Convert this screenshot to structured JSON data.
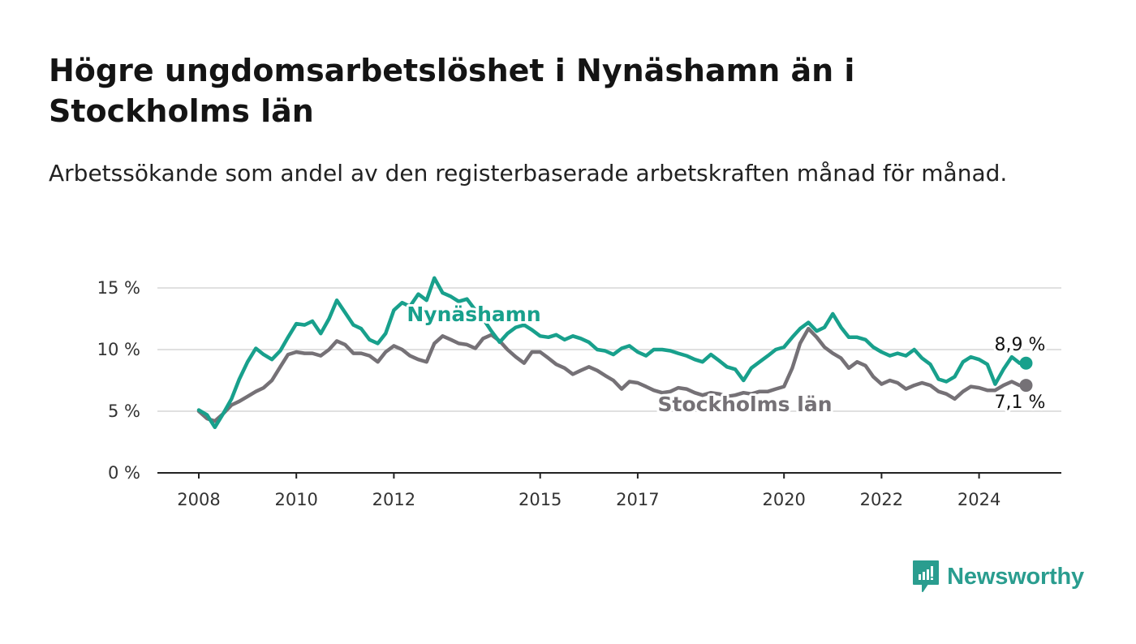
{
  "title": "Högre ungdomsarbetslöshet i Nynäshamn än i Stockholms län",
  "subtitle": "Arbetssökande som andel av den registerbaserade arbetskraften månad för månad.",
  "brand": {
    "name": "Newsworthy",
    "color": "#2a9d8f",
    "icon": "chart-bubble-icon"
  },
  "chart_data": {
    "type": "line",
    "ylim": [
      0,
      15
    ],
    "xlim": [
      2008,
      2025
    ],
    "y_ticks": [
      {
        "value": 0,
        "label": "0 %"
      },
      {
        "value": 5,
        "label": "5 %"
      },
      {
        "value": 10,
        "label": "10 %"
      },
      {
        "value": 15,
        "label": "15 %"
      }
    ],
    "x_ticks": [
      {
        "value": 2008,
        "label": "2008"
      },
      {
        "value": 2010,
        "label": "2010"
      },
      {
        "value": 2012,
        "label": "2012"
      },
      {
        "value": 2015,
        "label": "2015"
      },
      {
        "value": 2017,
        "label": "2017"
      },
      {
        "value": 2020,
        "label": "2020"
      },
      {
        "value": 2022,
        "label": "2022"
      },
      {
        "value": 2024,
        "label": "2024"
      }
    ],
    "grid": true,
    "series": [
      {
        "name": "Nynäshamn",
        "color": "#18a08c",
        "end_label": "8,9 %",
        "points": [
          [
            2008.0,
            5.1
          ],
          [
            2008.17,
            4.7
          ],
          [
            2008.33,
            3.7
          ],
          [
            2008.5,
            4.8
          ],
          [
            2008.67,
            6.0
          ],
          [
            2008.83,
            7.6
          ],
          [
            2009.0,
            9.0
          ],
          [
            2009.17,
            10.1
          ],
          [
            2009.33,
            9.6
          ],
          [
            2009.5,
            9.2
          ],
          [
            2009.67,
            9.9
          ],
          [
            2009.83,
            11.0
          ],
          [
            2010.0,
            12.1
          ],
          [
            2010.17,
            12.0
          ],
          [
            2010.33,
            12.3
          ],
          [
            2010.5,
            11.3
          ],
          [
            2010.67,
            12.5
          ],
          [
            2010.83,
            14.0
          ],
          [
            2011.0,
            13.0
          ],
          [
            2011.17,
            12.0
          ],
          [
            2011.33,
            11.7
          ],
          [
            2011.5,
            10.8
          ],
          [
            2011.67,
            10.5
          ],
          [
            2011.83,
            11.3
          ],
          [
            2012.0,
            13.2
          ],
          [
            2012.17,
            13.8
          ],
          [
            2012.33,
            13.5
          ],
          [
            2012.5,
            14.5
          ],
          [
            2012.67,
            14.0
          ],
          [
            2012.83,
            15.8
          ],
          [
            2013.0,
            14.6
          ],
          [
            2013.17,
            14.3
          ],
          [
            2013.33,
            13.9
          ],
          [
            2013.5,
            14.1
          ],
          [
            2013.67,
            13.2
          ],
          [
            2013.83,
            12.5
          ],
          [
            2014.0,
            11.5
          ],
          [
            2014.17,
            10.6
          ],
          [
            2014.33,
            11.3
          ],
          [
            2014.5,
            11.8
          ],
          [
            2014.67,
            12.0
          ],
          [
            2014.83,
            11.6
          ],
          [
            2015.0,
            11.1
          ],
          [
            2015.17,
            11.0
          ],
          [
            2015.33,
            11.2
          ],
          [
            2015.5,
            10.8
          ],
          [
            2015.67,
            11.1
          ],
          [
            2015.83,
            10.9
          ],
          [
            2016.0,
            10.6
          ],
          [
            2016.17,
            10.0
          ],
          [
            2016.33,
            9.9
          ],
          [
            2016.5,
            9.6
          ],
          [
            2016.67,
            10.1
          ],
          [
            2016.83,
            10.3
          ],
          [
            2017.0,
            9.8
          ],
          [
            2017.17,
            9.5
          ],
          [
            2017.33,
            10.0
          ],
          [
            2017.5,
            10.0
          ],
          [
            2017.67,
            9.9
          ],
          [
            2017.83,
            9.7
          ],
          [
            2018.0,
            9.5
          ],
          [
            2018.17,
            9.2
          ],
          [
            2018.33,
            9.0
          ],
          [
            2018.5,
            9.6
          ],
          [
            2018.67,
            9.1
          ],
          [
            2018.83,
            8.6
          ],
          [
            2019.0,
            8.4
          ],
          [
            2019.17,
            7.5
          ],
          [
            2019.33,
            8.5
          ],
          [
            2019.5,
            9.0
          ],
          [
            2019.67,
            9.5
          ],
          [
            2019.83,
            10.0
          ],
          [
            2020.0,
            10.2
          ],
          [
            2020.17,
            11.0
          ],
          [
            2020.33,
            11.7
          ],
          [
            2020.5,
            12.2
          ],
          [
            2020.67,
            11.5
          ],
          [
            2020.83,
            11.8
          ],
          [
            2021.0,
            12.9
          ],
          [
            2021.17,
            11.8
          ],
          [
            2021.33,
            11.0
          ],
          [
            2021.5,
            11.0
          ],
          [
            2021.67,
            10.8
          ],
          [
            2021.83,
            10.2
          ],
          [
            2022.0,
            9.8
          ],
          [
            2022.17,
            9.5
          ],
          [
            2022.33,
            9.7
          ],
          [
            2022.5,
            9.5
          ],
          [
            2022.67,
            10.0
          ],
          [
            2022.83,
            9.3
          ],
          [
            2023.0,
            8.8
          ],
          [
            2023.17,
            7.6
          ],
          [
            2023.33,
            7.4
          ],
          [
            2023.5,
            7.8
          ],
          [
            2023.67,
            9.0
          ],
          [
            2023.83,
            9.4
          ],
          [
            2024.0,
            9.2
          ],
          [
            2024.17,
            8.8
          ],
          [
            2024.33,
            7.2
          ],
          [
            2024.5,
            8.4
          ],
          [
            2024.67,
            9.4
          ],
          [
            2024.83,
            8.9
          ]
        ]
      },
      {
        "name": "Stockholms län",
        "color": "#757176",
        "end_label": "7,1 %",
        "points": [
          [
            2008.0,
            5.0
          ],
          [
            2008.17,
            4.4
          ],
          [
            2008.33,
            4.2
          ],
          [
            2008.5,
            4.8
          ],
          [
            2008.67,
            5.5
          ],
          [
            2008.83,
            5.8
          ],
          [
            2009.0,
            6.2
          ],
          [
            2009.17,
            6.6
          ],
          [
            2009.33,
            6.9
          ],
          [
            2009.5,
            7.5
          ],
          [
            2009.67,
            8.6
          ],
          [
            2009.83,
            9.6
          ],
          [
            2010.0,
            9.8
          ],
          [
            2010.17,
            9.7
          ],
          [
            2010.33,
            9.7
          ],
          [
            2010.5,
            9.5
          ],
          [
            2010.67,
            10.0
          ],
          [
            2010.83,
            10.7
          ],
          [
            2011.0,
            10.4
          ],
          [
            2011.17,
            9.7
          ],
          [
            2011.33,
            9.7
          ],
          [
            2011.5,
            9.5
          ],
          [
            2011.67,
            9.0
          ],
          [
            2011.83,
            9.8
          ],
          [
            2012.0,
            10.3
          ],
          [
            2012.17,
            10.0
          ],
          [
            2012.33,
            9.5
          ],
          [
            2012.5,
            9.2
          ],
          [
            2012.67,
            9.0
          ],
          [
            2012.83,
            10.5
          ],
          [
            2013.0,
            11.1
          ],
          [
            2013.17,
            10.8
          ],
          [
            2013.33,
            10.5
          ],
          [
            2013.5,
            10.4
          ],
          [
            2013.67,
            10.1
          ],
          [
            2013.83,
            10.9
          ],
          [
            2014.0,
            11.2
          ],
          [
            2014.17,
            10.7
          ],
          [
            2014.33,
            10.0
          ],
          [
            2014.5,
            9.4
          ],
          [
            2014.67,
            8.9
          ],
          [
            2014.83,
            9.8
          ],
          [
            2015.0,
            9.8
          ],
          [
            2015.17,
            9.3
          ],
          [
            2015.33,
            8.8
          ],
          [
            2015.5,
            8.5
          ],
          [
            2015.67,
            8.0
          ],
          [
            2015.83,
            8.3
          ],
          [
            2016.0,
            8.6
          ],
          [
            2016.17,
            8.3
          ],
          [
            2016.33,
            7.9
          ],
          [
            2016.5,
            7.5
          ],
          [
            2016.67,
            6.8
          ],
          [
            2016.83,
            7.4
          ],
          [
            2017.0,
            7.3
          ],
          [
            2017.17,
            7.0
          ],
          [
            2017.33,
            6.7
          ],
          [
            2017.5,
            6.5
          ],
          [
            2017.67,
            6.6
          ],
          [
            2017.83,
            6.9
          ],
          [
            2018.0,
            6.8
          ],
          [
            2018.17,
            6.5
          ],
          [
            2018.33,
            6.3
          ],
          [
            2018.5,
            6.5
          ],
          [
            2018.67,
            6.4
          ],
          [
            2018.83,
            6.2
          ],
          [
            2019.0,
            6.3
          ],
          [
            2019.17,
            6.5
          ],
          [
            2019.33,
            6.4
          ],
          [
            2019.5,
            6.6
          ],
          [
            2019.67,
            6.6
          ],
          [
            2019.83,
            6.8
          ],
          [
            2020.0,
            7.0
          ],
          [
            2020.17,
            8.5
          ],
          [
            2020.33,
            10.5
          ],
          [
            2020.5,
            11.7
          ],
          [
            2020.67,
            11.0
          ],
          [
            2020.83,
            10.2
          ],
          [
            2021.0,
            9.7
          ],
          [
            2021.17,
            9.3
          ],
          [
            2021.33,
            8.5
          ],
          [
            2021.5,
            9.0
          ],
          [
            2021.67,
            8.7
          ],
          [
            2021.83,
            7.8
          ],
          [
            2022.0,
            7.2
          ],
          [
            2022.17,
            7.5
          ],
          [
            2022.33,
            7.3
          ],
          [
            2022.5,
            6.8
          ],
          [
            2022.67,
            7.1
          ],
          [
            2022.83,
            7.3
          ],
          [
            2023.0,
            7.1
          ],
          [
            2023.17,
            6.6
          ],
          [
            2023.33,
            6.4
          ],
          [
            2023.5,
            6.0
          ],
          [
            2023.67,
            6.6
          ],
          [
            2023.83,
            7.0
          ],
          [
            2024.0,
            6.9
          ],
          [
            2024.17,
            6.7
          ],
          [
            2024.33,
            6.7
          ],
          [
            2024.5,
            7.1
          ],
          [
            2024.67,
            7.4
          ],
          [
            2024.83,
            7.1
          ]
        ]
      }
    ]
  }
}
